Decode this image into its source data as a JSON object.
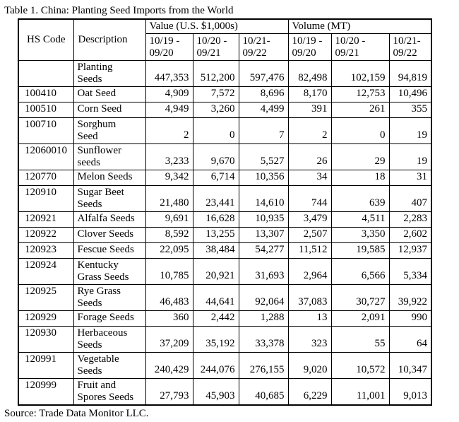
{
  "title": "Table 1. China: Planting Seed Imports from the World",
  "source": "Source: Trade Data Monitor LLC.",
  "table": {
    "headers": {
      "hs_code": "HS Code",
      "description": "Description",
      "value_group": "Value (U.S. $1,000s)",
      "volume_group": "Volume (MT)",
      "periods": [
        "10/19 -\n09/20",
        "10/20 -\n09/21",
        "10/21-\n09/22"
      ]
    },
    "rows": [
      {
        "hs": "",
        "desc": "Planting\nSeeds",
        "values": [
          "447,353",
          "512,200",
          "597,476"
        ],
        "volumes": [
          "82,498",
          "102,159",
          "94,819"
        ]
      },
      {
        "hs": "100410",
        "desc": "Oat Seed",
        "values": [
          "4,909",
          "7,572",
          "8,696"
        ],
        "volumes": [
          "8,170",
          "12,753",
          "10,496"
        ]
      },
      {
        "hs": "100510",
        "desc": "Corn Seed",
        "values": [
          "4,949",
          "3,260",
          "4,499"
        ],
        "volumes": [
          "391",
          "261",
          "355"
        ]
      },
      {
        "hs": "100710",
        "desc": "Sorghum\nSeed",
        "values": [
          "2",
          "0",
          "7"
        ],
        "volumes": [
          "2",
          "0",
          "19"
        ]
      },
      {
        "hs": "12060010",
        "desc": "Sunflower\nseeds",
        "values": [
          "3,233",
          "9,670",
          "5,527"
        ],
        "volumes": [
          "26",
          "29",
          "19"
        ]
      },
      {
        "hs": "120770",
        "desc": "Melon Seeds",
        "values": [
          "9,342",
          "6,714",
          "10,356"
        ],
        "volumes": [
          "34",
          "18",
          "31"
        ]
      },
      {
        "hs": "120910",
        "desc": "Sugar Beet\nSeeds",
        "values": [
          "21,480",
          "23,441",
          "14,610"
        ],
        "volumes": [
          "744",
          "639",
          "407"
        ]
      },
      {
        "hs": "120921",
        "desc": "Alfalfa Seeds",
        "values": [
          "9,691",
          "16,628",
          "10,935"
        ],
        "volumes": [
          "3,479",
          "4,511",
          "2,283"
        ]
      },
      {
        "hs": "120922",
        "desc": "Clover Seeds",
        "values": [
          "8,592",
          "13,255",
          "13,307"
        ],
        "volumes": [
          "2,507",
          "3,350",
          "2,602"
        ]
      },
      {
        "hs": "120923",
        "desc": "Fescue Seeds",
        "values": [
          "22,095",
          "38,484",
          "54,277"
        ],
        "volumes": [
          "11,512",
          "19,585",
          "12,937"
        ]
      },
      {
        "hs": "120924",
        "desc": "Kentucky\nGrass Seeds",
        "values": [
          "10,785",
          "20,921",
          "31,693"
        ],
        "volumes": [
          "2,964",
          "6,566",
          "5,334"
        ]
      },
      {
        "hs": "120925",
        "desc": "Rye Grass\nSeeds",
        "values": [
          "46,483",
          "44,641",
          "92,064"
        ],
        "volumes": [
          "37,083",
          "30,727",
          "39,922"
        ]
      },
      {
        "hs": "120929",
        "desc": "Forage Seeds",
        "values": [
          "360",
          "2,442",
          "1,288"
        ],
        "volumes": [
          "13",
          "2,091",
          "990"
        ]
      },
      {
        "hs": "120930",
        "desc": "Herbaceous\nSeeds",
        "values": [
          "37,209",
          "35,192",
          "33,378"
        ],
        "volumes": [
          "323",
          "55",
          "64"
        ]
      },
      {
        "hs": "120991",
        "desc": "Vegetable\nSeeds",
        "values": [
          "240,429",
          "244,076",
          "276,155"
        ],
        "volumes": [
          "9,020",
          "10,572",
          "10,347"
        ]
      },
      {
        "hs": "120999",
        "desc": "Fruit and\nSpores Seeds",
        "values": [
          "27,793",
          "45,903",
          "40,685"
        ],
        "volumes": [
          "6,229",
          "11,001",
          "9,013"
        ]
      }
    ]
  }
}
